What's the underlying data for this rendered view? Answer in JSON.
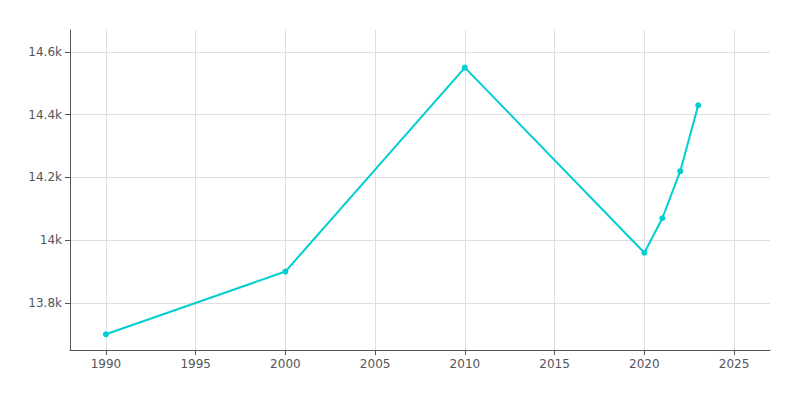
{
  "chart_data": {
    "type": "line",
    "x": [
      1990,
      2000,
      2010,
      2020,
      2021,
      2022,
      2023
    ],
    "values": [
      13700,
      13900,
      14550,
      13960,
      14070,
      14220,
      14430
    ],
    "color": "#00CED1",
    "marker": "circle",
    "xlim": [
      1988,
      2027
    ],
    "ylim": [
      13650,
      14670
    ],
    "xticks": [
      1990,
      1995,
      2000,
      2005,
      2010,
      2015,
      2020,
      2025
    ],
    "yticks": [
      {
        "value": 13800,
        "label": "13.8k"
      },
      {
        "value": 14000,
        "label": "14k"
      },
      {
        "value": 14200,
        "label": "14.2k"
      },
      {
        "value": 14400,
        "label": "14.4k"
      },
      {
        "value": 14600,
        "label": "14.6k"
      }
    ],
    "grid": true
  }
}
